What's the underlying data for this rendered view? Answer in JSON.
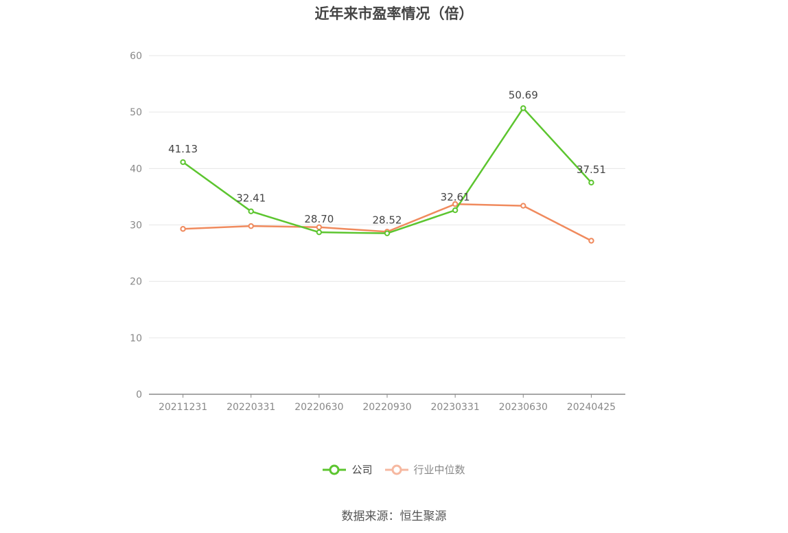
{
  "title": "近年来市盈率情况（倍）",
  "source": "数据来源：恒生聚源",
  "legend": {
    "company": "公司",
    "industry": "行业中位数"
  },
  "colors": {
    "company": "#5cc52f",
    "industry": "#f08a5d",
    "industry_legend": "#f6b8a0",
    "grid": "#e6e6e6",
    "axis": "#888888",
    "tick_text": "#888888",
    "label_text": "#444444"
  },
  "chart_data": {
    "type": "line",
    "categories": [
      "20211231",
      "20220331",
      "20220630",
      "20220930",
      "20230331",
      "20230630",
      "20240425"
    ],
    "ylim": [
      0,
      60
    ],
    "yticks": [
      0,
      10,
      20,
      30,
      40,
      50,
      60
    ],
    "grid": true,
    "legend_position": "bottom",
    "series": [
      {
        "name": "公司",
        "values": [
          41.13,
          32.41,
          28.7,
          28.52,
          32.61,
          50.69,
          37.51
        ],
        "labels": [
          "41.13",
          "32.41",
          "28.70",
          "28.52",
          "32.61",
          "50.69",
          "37.51"
        ]
      },
      {
        "name": "行业中位数",
        "values": [
          29.3,
          29.8,
          29.6,
          28.8,
          33.7,
          33.4,
          27.2
        ]
      }
    ]
  }
}
